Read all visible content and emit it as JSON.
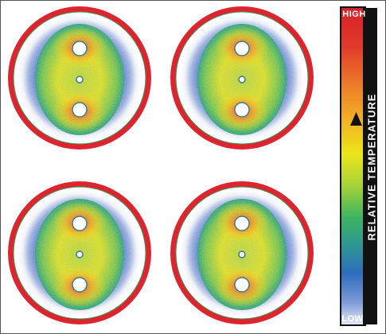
{
  "colorbar": {
    "high_label": "HIGH",
    "low_label": "LOW",
    "title": "RELATIVE TEMPERATURE",
    "colors": [
      "#d9202a",
      "#e8502a",
      "#f08a2a",
      "#f2c01f",
      "#e8e41a",
      "#9bcc3a",
      "#3fb560",
      "#2e9a8e",
      "#2f6cbd",
      "#6a8fd0",
      "#cfd8ea"
    ]
  },
  "disks": {
    "count": 4,
    "rim_color": "#dd2530",
    "holes_per_disk": 3
  }
}
